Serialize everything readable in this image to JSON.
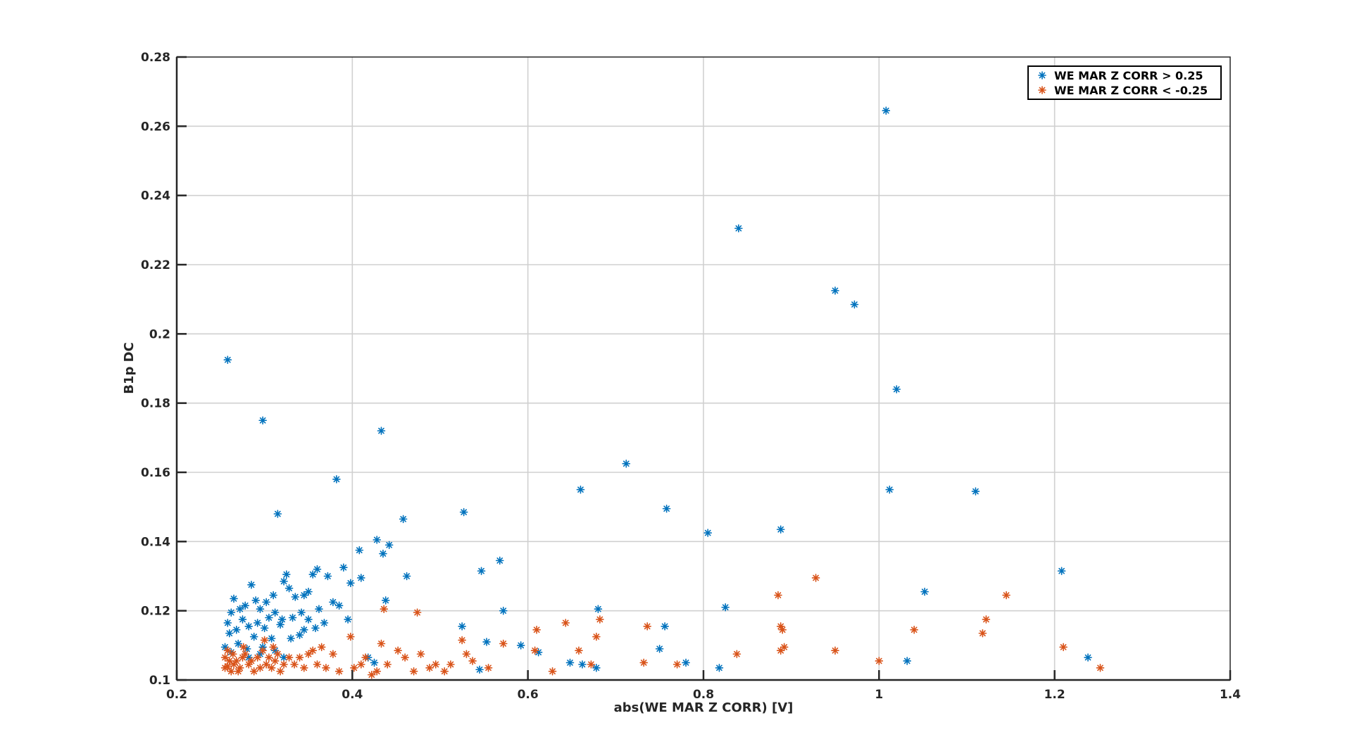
{
  "chart_data": {
    "type": "scatter",
    "xlabel": "abs(WE MAR Z CORR) [V]",
    "ylabel": "B1p DC",
    "xlim": [
      0.2,
      1.4
    ],
    "ylim": [
      0.1,
      0.28
    ],
    "xticks": [
      0.2,
      0.4,
      0.6,
      0.8,
      1.0,
      1.2,
      1.4
    ],
    "xtick_labels": [
      "0.2",
      "0.4",
      "0.6",
      "0.8",
      "1",
      "1.2",
      "1.4"
    ],
    "yticks": [
      0.1,
      0.12,
      0.14,
      0.16,
      0.18,
      0.2,
      0.22,
      0.24,
      0.26,
      0.28
    ],
    "ytick_labels": [
      "0.1",
      "0.12",
      "0.14",
      "0.16",
      "0.18",
      "0.2",
      "0.22",
      "0.24",
      "0.26",
      "0.28"
    ],
    "grid": true,
    "marker": "asterisk",
    "legend_position": "top-right",
    "series": [
      {
        "name": "WE MAR Z CORR > 0.25",
        "color": "#0072BD",
        "points": [
          [
            0.258,
            0.1925
          ],
          [
            0.298,
            0.175
          ],
          [
            0.315,
            0.148
          ],
          [
            0.382,
            0.158
          ],
          [
            0.433,
            0.172
          ],
          [
            0.428,
            0.1405
          ],
          [
            0.442,
            0.139
          ],
          [
            0.458,
            0.1465
          ],
          [
            0.462,
            0.13
          ],
          [
            0.435,
            0.1365
          ],
          [
            0.408,
            0.1375
          ],
          [
            0.41,
            0.1295
          ],
          [
            0.39,
            0.1325
          ],
          [
            0.398,
            0.128
          ],
          [
            0.438,
            0.123
          ],
          [
            0.36,
            0.132
          ],
          [
            0.372,
            0.13
          ],
          [
            0.355,
            0.1305
          ],
          [
            0.345,
            0.1245
          ],
          [
            0.35,
            0.1255
          ],
          [
            0.335,
            0.124
          ],
          [
            0.325,
            0.1305
          ],
          [
            0.322,
            0.1285
          ],
          [
            0.328,
            0.1265
          ],
          [
            0.31,
            0.1245
          ],
          [
            0.302,
            0.1225
          ],
          [
            0.312,
            0.1195
          ],
          [
            0.32,
            0.1175
          ],
          [
            0.332,
            0.118
          ],
          [
            0.342,
            0.1195
          ],
          [
            0.35,
            0.1175
          ],
          [
            0.358,
            0.115
          ],
          [
            0.345,
            0.1145
          ],
          [
            0.34,
            0.113
          ],
          [
            0.33,
            0.112
          ],
          [
            0.318,
            0.116
          ],
          [
            0.305,
            0.118
          ],
          [
            0.295,
            0.1205
          ],
          [
            0.29,
            0.123
          ],
          [
            0.285,
            0.1275
          ],
          [
            0.278,
            0.1215
          ],
          [
            0.272,
            0.1205
          ],
          [
            0.265,
            0.1235
          ],
          [
            0.262,
            0.1195
          ],
          [
            0.258,
            0.1165
          ],
          [
            0.26,
            0.1135
          ],
          [
            0.268,
            0.1145
          ],
          [
            0.275,
            0.1175
          ],
          [
            0.282,
            0.1155
          ],
          [
            0.288,
            0.1125
          ],
          [
            0.292,
            0.1165
          ],
          [
            0.3,
            0.115
          ],
          [
            0.308,
            0.112
          ],
          [
            0.298,
            0.1095
          ],
          [
            0.28,
            0.109
          ],
          [
            0.27,
            0.1105
          ],
          [
            0.262,
            0.108
          ],
          [
            0.255,
            0.1095
          ],
          [
            0.282,
            0.1065
          ],
          [
            0.295,
            0.1075
          ],
          [
            0.312,
            0.1085
          ],
          [
            0.322,
            0.1065
          ],
          [
            0.362,
            0.1205
          ],
          [
            0.378,
            0.1225
          ],
          [
            0.385,
            0.1215
          ],
          [
            0.368,
            0.1165
          ],
          [
            0.395,
            0.1175
          ],
          [
            0.425,
            0.105
          ],
          [
            0.418,
            0.1065
          ],
          [
            0.527,
            0.1485
          ],
          [
            0.525,
            0.1155
          ],
          [
            0.547,
            0.1315
          ],
          [
            0.568,
            0.1345
          ],
          [
            0.572,
            0.12
          ],
          [
            0.553,
            0.111
          ],
          [
            0.545,
            0.103
          ],
          [
            0.592,
            0.11
          ],
          [
            0.612,
            0.108
          ],
          [
            0.66,
            0.155
          ],
          [
            0.712,
            0.1625
          ],
          [
            0.758,
            0.1495
          ],
          [
            0.68,
            0.1205
          ],
          [
            0.756,
            0.1155
          ],
          [
            0.75,
            0.109
          ],
          [
            0.648,
            0.105
          ],
          [
            0.662,
            0.1045
          ],
          [
            0.678,
            0.1035
          ],
          [
            0.78,
            0.105
          ],
          [
            0.805,
            0.1425
          ],
          [
            0.84,
            0.2305
          ],
          [
            0.825,
            0.121
          ],
          [
            0.818,
            0.1035
          ],
          [
            0.888,
            0.1435
          ],
          [
            0.95,
            0.2125
          ],
          [
            0.972,
            0.2085
          ],
          [
            1.008,
            0.2645
          ],
          [
            1.02,
            0.184
          ],
          [
            1.012,
            0.155
          ],
          [
            1.052,
            0.1255
          ],
          [
            1.032,
            0.1055
          ],
          [
            1.11,
            0.1545
          ],
          [
            1.208,
            0.1315
          ],
          [
            1.238,
            0.1065
          ]
        ]
      },
      {
        "name": "WE MAR Z CORR < -0.25",
        "color": "#D95319",
        "points": [
          [
            0.255,
            0.1065
          ],
          [
            0.258,
            0.104
          ],
          [
            0.262,
            0.1025
          ],
          [
            0.268,
            0.1055
          ],
          [
            0.272,
            0.1035
          ],
          [
            0.278,
            0.1075
          ],
          [
            0.282,
            0.1045
          ],
          [
            0.288,
            0.1025
          ],
          [
            0.292,
            0.1065
          ],
          [
            0.298,
            0.1085
          ],
          [
            0.302,
            0.1045
          ],
          [
            0.308,
            0.1035
          ],
          [
            0.312,
            0.1055
          ],
          [
            0.318,
            0.1025
          ],
          [
            0.322,
            0.1045
          ],
          [
            0.328,
            0.1065
          ],
          [
            0.255,
            0.1035
          ],
          [
            0.26,
            0.1055
          ],
          [
            0.265,
            0.1045
          ],
          [
            0.27,
            0.1025
          ],
          [
            0.275,
            0.1065
          ],
          [
            0.285,
            0.1055
          ],
          [
            0.295,
            0.1035
          ],
          [
            0.305,
            0.1065
          ],
          [
            0.315,
            0.1075
          ],
          [
            0.258,
            0.1085
          ],
          [
            0.264,
            0.1075
          ],
          [
            0.276,
            0.1095
          ],
          [
            0.3,
            0.1115
          ],
          [
            0.31,
            0.1095
          ],
          [
            0.334,
            0.1045
          ],
          [
            0.34,
            0.1065
          ],
          [
            0.345,
            0.1035
          ],
          [
            0.35,
            0.1075
          ],
          [
            0.355,
            0.1085
          ],
          [
            0.36,
            0.1045
          ],
          [
            0.365,
            0.1095
          ],
          [
            0.37,
            0.1035
          ],
          [
            0.378,
            0.1075
          ],
          [
            0.385,
            0.1025
          ],
          [
            0.398,
            0.1125
          ],
          [
            0.402,
            0.1035
          ],
          [
            0.41,
            0.1045
          ],
          [
            0.415,
            0.1065
          ],
          [
            0.422,
            0.1015
          ],
          [
            0.428,
            0.1025
          ],
          [
            0.433,
            0.1105
          ],
          [
            0.436,
            0.1205
          ],
          [
            0.44,
            0.1045
          ],
          [
            0.452,
            0.1085
          ],
          [
            0.46,
            0.1065
          ],
          [
            0.47,
            0.1025
          ],
          [
            0.474,
            0.1195
          ],
          [
            0.478,
            0.1075
          ],
          [
            0.488,
            0.1035
          ],
          [
            0.495,
            0.1045
          ],
          [
            0.505,
            0.1025
          ],
          [
            0.512,
            0.1045
          ],
          [
            0.525,
            0.1115
          ],
          [
            0.53,
            0.1075
          ],
          [
            0.537,
            0.1055
          ],
          [
            0.555,
            0.1035
          ],
          [
            0.572,
            0.1105
          ],
          [
            0.608,
            0.1085
          ],
          [
            0.61,
            0.1145
          ],
          [
            0.628,
            0.1025
          ],
          [
            0.643,
            0.1165
          ],
          [
            0.658,
            0.1085
          ],
          [
            0.672,
            0.1045
          ],
          [
            0.678,
            0.1125
          ],
          [
            0.682,
            0.1175
          ],
          [
            0.732,
            0.105
          ],
          [
            0.736,
            0.1155
          ],
          [
            0.77,
            0.1045
          ],
          [
            0.838,
            0.1075
          ],
          [
            0.885,
            0.1245
          ],
          [
            0.888,
            0.1155
          ],
          [
            0.89,
            0.1145
          ],
          [
            0.888,
            0.1085
          ],
          [
            0.892,
            0.1095
          ],
          [
            0.928,
            0.1295
          ],
          [
            0.95,
            0.1085
          ],
          [
            1.0,
            0.1055
          ],
          [
            1.04,
            0.1145
          ],
          [
            1.118,
            0.1135
          ],
          [
            1.122,
            0.1175
          ],
          [
            1.145,
            0.1245
          ],
          [
            1.21,
            0.1095
          ],
          [
            1.252,
            0.1035
          ]
        ]
      }
    ]
  }
}
